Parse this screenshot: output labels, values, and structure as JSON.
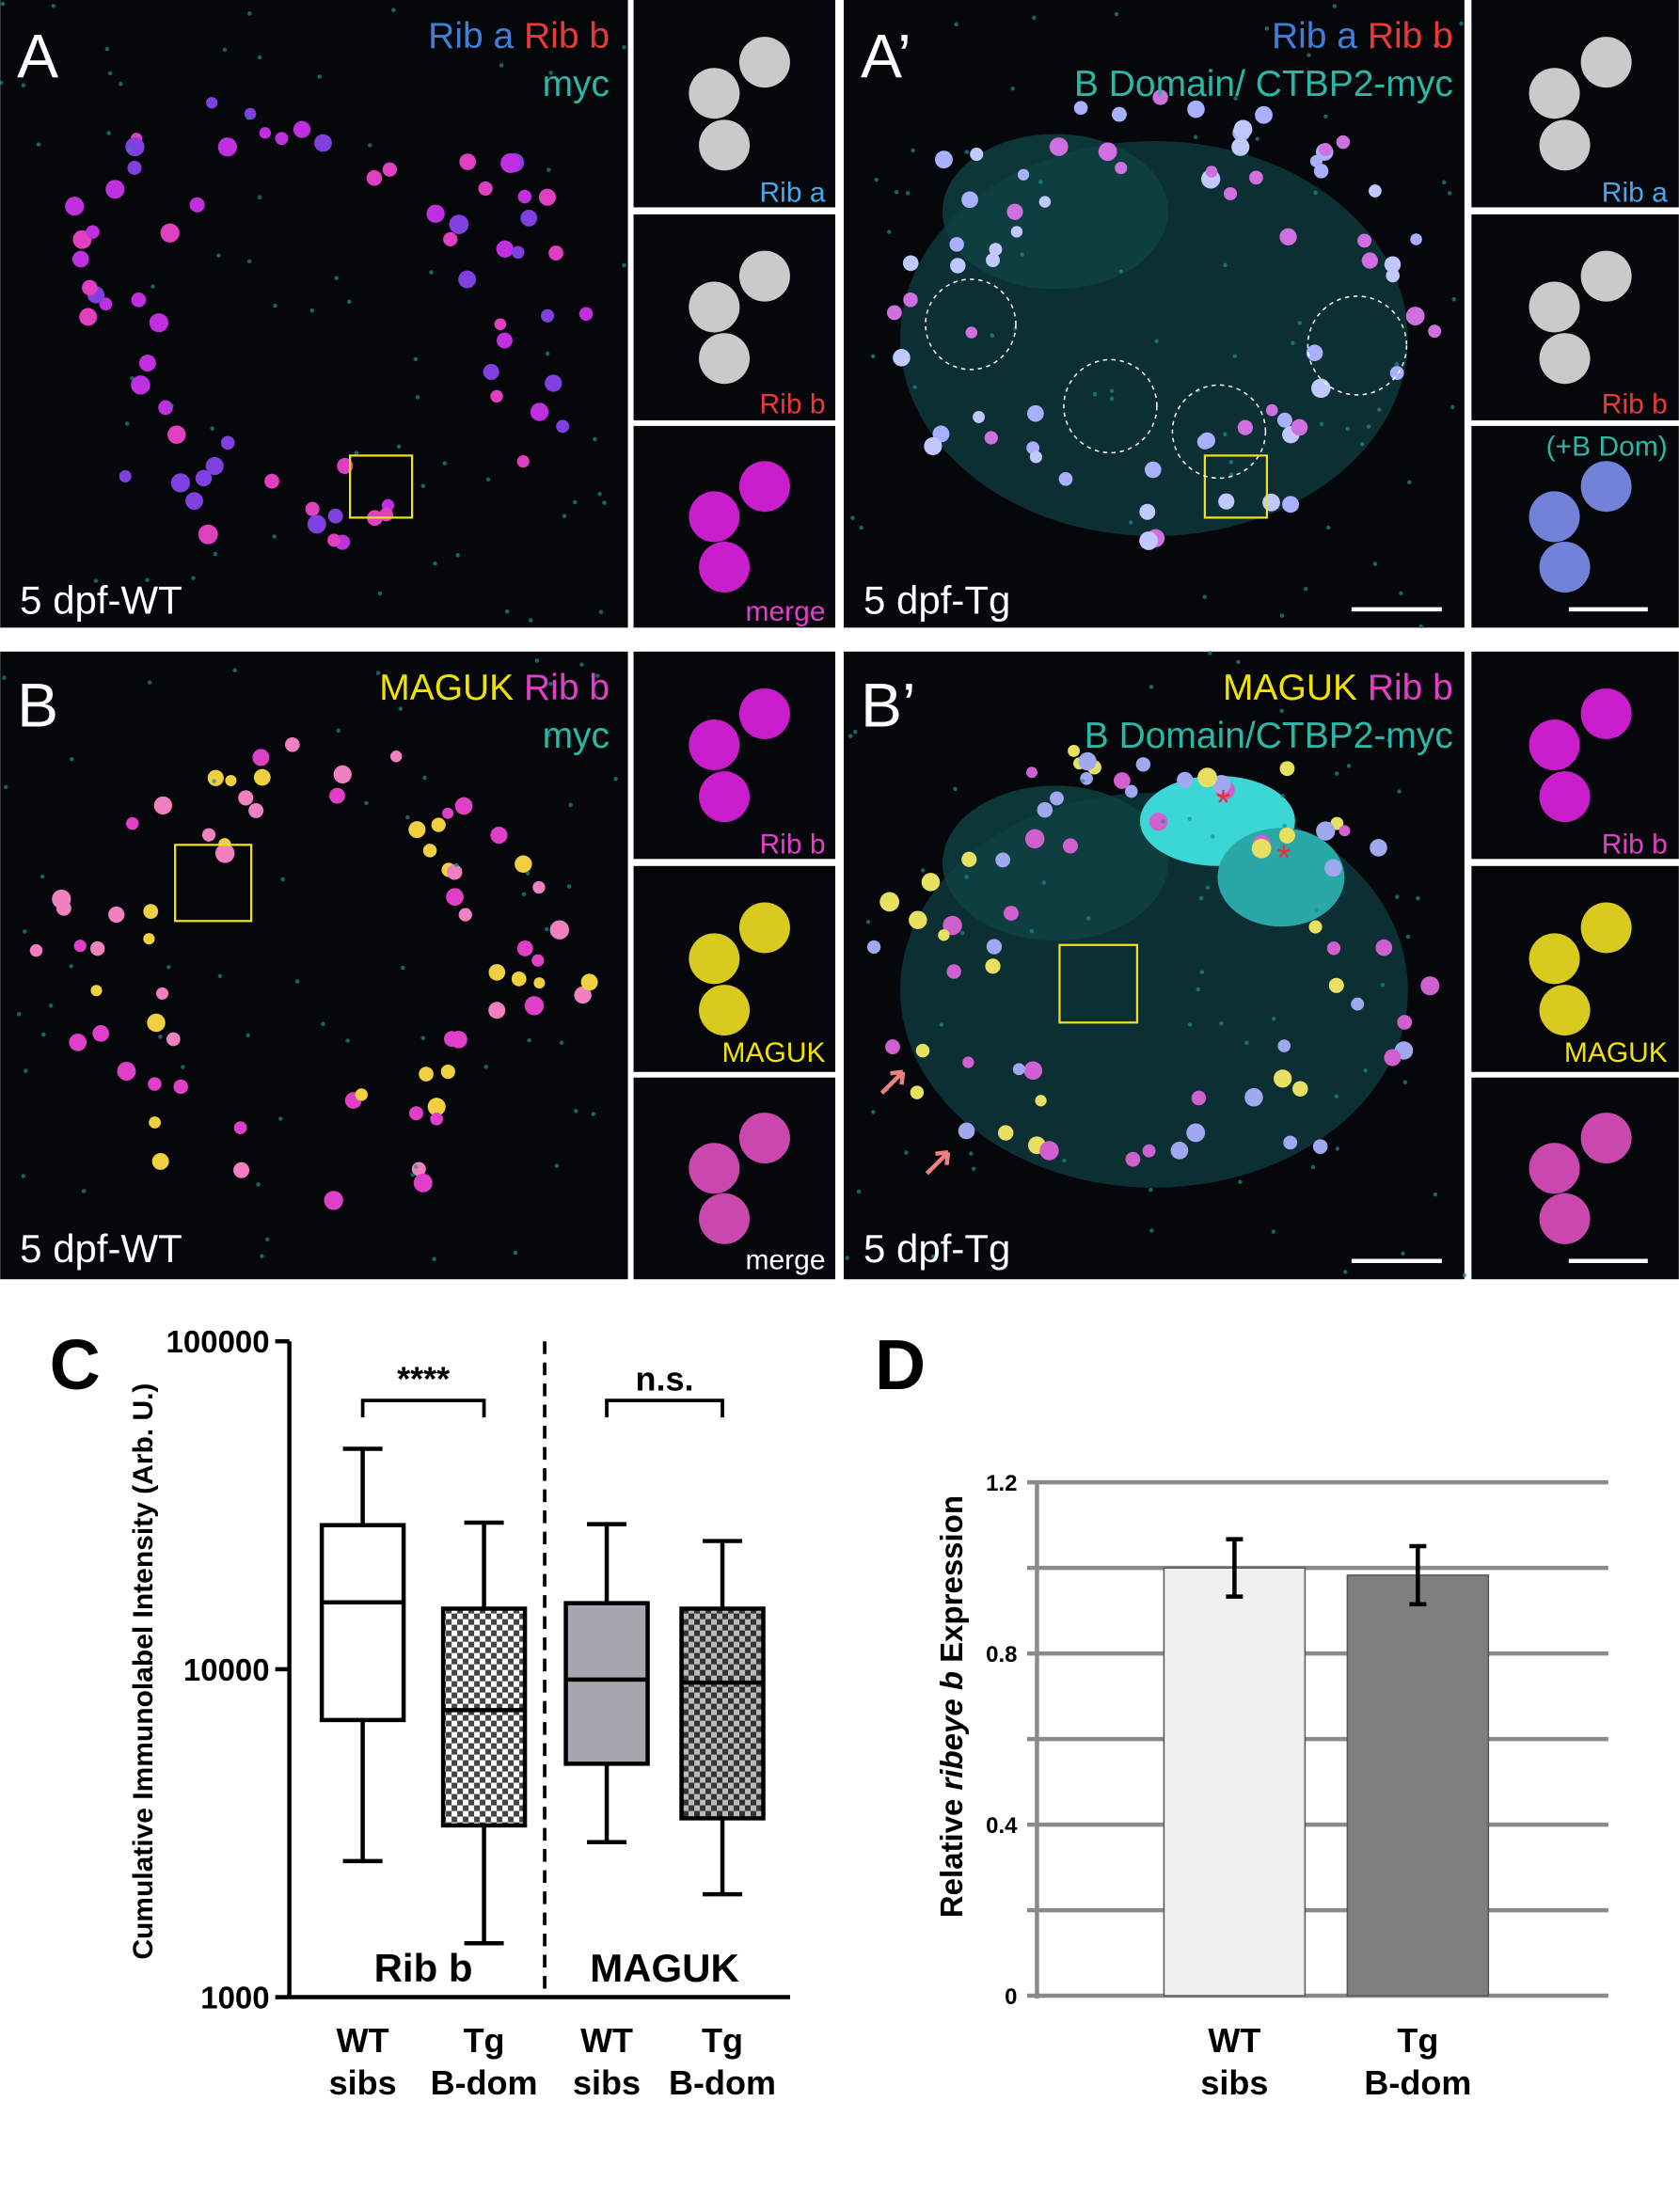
{
  "panels": [
    {
      "label": "A",
      "channels": [
        "Rib a",
        "Rib b",
        "myc"
      ],
      "caption": "5 dpf-WT",
      "insets": [
        "Rib a",
        "Rib b",
        "merge"
      ]
    },
    {
      "label": "A’",
      "channels": [
        "Rib a",
        "Rib b",
        "B Domain/ CTBP2-myc"
      ],
      "caption": "5 dpf-Tg",
      "insets": [
        "Rib a",
        "Rib b",
        "(+B Dom)"
      ]
    },
    {
      "label": "B",
      "channels": [
        "MAGUK",
        "Rib b",
        "myc"
      ],
      "caption": "5 dpf-WT",
      "insets": [
        "Rib b",
        "MAGUK",
        "merge"
      ]
    },
    {
      "label": "B’",
      "channels": [
        "MAGUK",
        "Rib b",
        "B Domain/CTBP2-myc"
      ],
      "caption": "5 dpf-Tg",
      "insets": [
        "Rib b",
        "MAGUK",
        "merge"
      ]
    }
  ],
  "chart_data": [
    {
      "type": "box",
      "panel_label": "C",
      "ylabel": "Cumulative Immunolabel Intensity (Arb. U.)",
      "categories": [
        "WT sibs",
        "Tg B-dom",
        "WT sibs",
        "Tg B-dom"
      ],
      "groups": [
        "Rib b",
        "MAGUK"
      ],
      "significance": [
        "****",
        "n.s."
      ],
      "boxes": [
        {
          "min": 2600,
          "q1": 7000,
          "median": 16000,
          "q3": 27500,
          "max": 47000,
          "fill": "#ffffff",
          "hatch": false
        },
        {
          "min": 1460,
          "q1": 3340,
          "median": 7500,
          "q3": 15300,
          "max": 28000,
          "fill": "#ffffff",
          "hatch": true
        },
        {
          "min": 2970,
          "q1": 5150,
          "median": 9300,
          "q3": 15900,
          "max": 27700,
          "fill": "#a6a6ae",
          "hatch": false
        },
        {
          "min": 2060,
          "q1": 3510,
          "median": 9100,
          "q3": 15300,
          "max": 24600,
          "fill": "#a6a6ae",
          "hatch": true
        }
      ],
      "ylim": [
        1000,
        100000
      ],
      "yticks": [
        1000,
        10000,
        100000
      ],
      "log_scale": true
    },
    {
      "type": "bar",
      "panel_label": "D",
      "ylabel": {
        "prefix": "Relative",
        "italic": "ribeye b",
        "suffix": "Expression"
      },
      "categories": [
        "WT sibs",
        "Tg B-dom"
      ],
      "values": [
        1.0,
        0.983
      ],
      "errors": [
        0.067,
        0.068
      ],
      "colors": [
        "#f0f0f0",
        "#7f7f7f"
      ],
      "ylim": [
        0,
        1.2
      ],
      "yticks": [
        0,
        0.4,
        0.8,
        1.2
      ],
      "minor_yticks": [
        0.2,
        0.6,
        1.0
      ],
      "grid": true
    }
  ]
}
